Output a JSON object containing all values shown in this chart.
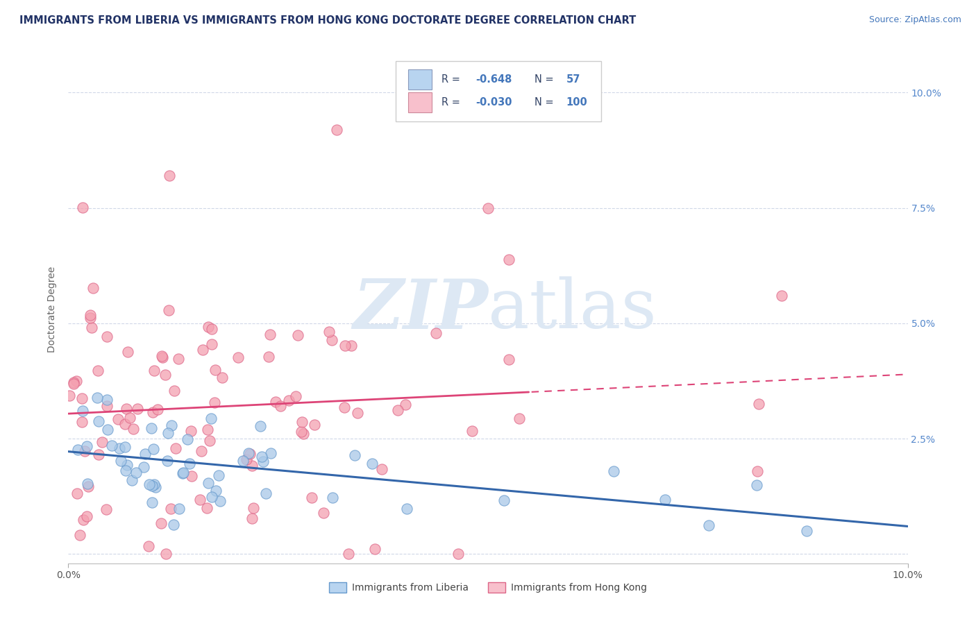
{
  "title": "IMMIGRANTS FROM LIBERIA VS IMMIGRANTS FROM HONG KONG DOCTORATE DEGREE CORRELATION CHART",
  "source": "Source: ZipAtlas.com",
  "ylabel": "Doctorate Degree",
  "y_tick_vals": [
    0.0,
    0.025,
    0.05,
    0.075,
    0.1
  ],
  "x_lim": [
    0.0,
    0.1
  ],
  "y_lim": [
    -0.002,
    0.108
  ],
  "legend_r1": "-0.648",
  "legend_n1": "57",
  "legend_r2": "-0.030",
  "legend_n2": "100",
  "color_blue": "#a8c8e8",
  "color_pink": "#f4a0b0",
  "color_blue_edge": "#6699cc",
  "color_pink_edge": "#dd6688",
  "color_blue_light": "#b8d4f0",
  "color_pink_light": "#f8c0cc",
  "trend_blue": "#3366aa",
  "trend_pink": "#dd4477",
  "text_blue": "#4477bb",
  "text_dark": "#334466",
  "title_color": "#223366",
  "watermark_color": "#dde8f4",
  "grid_color": "#d0d8e8",
  "right_tick_color": "#5588cc"
}
